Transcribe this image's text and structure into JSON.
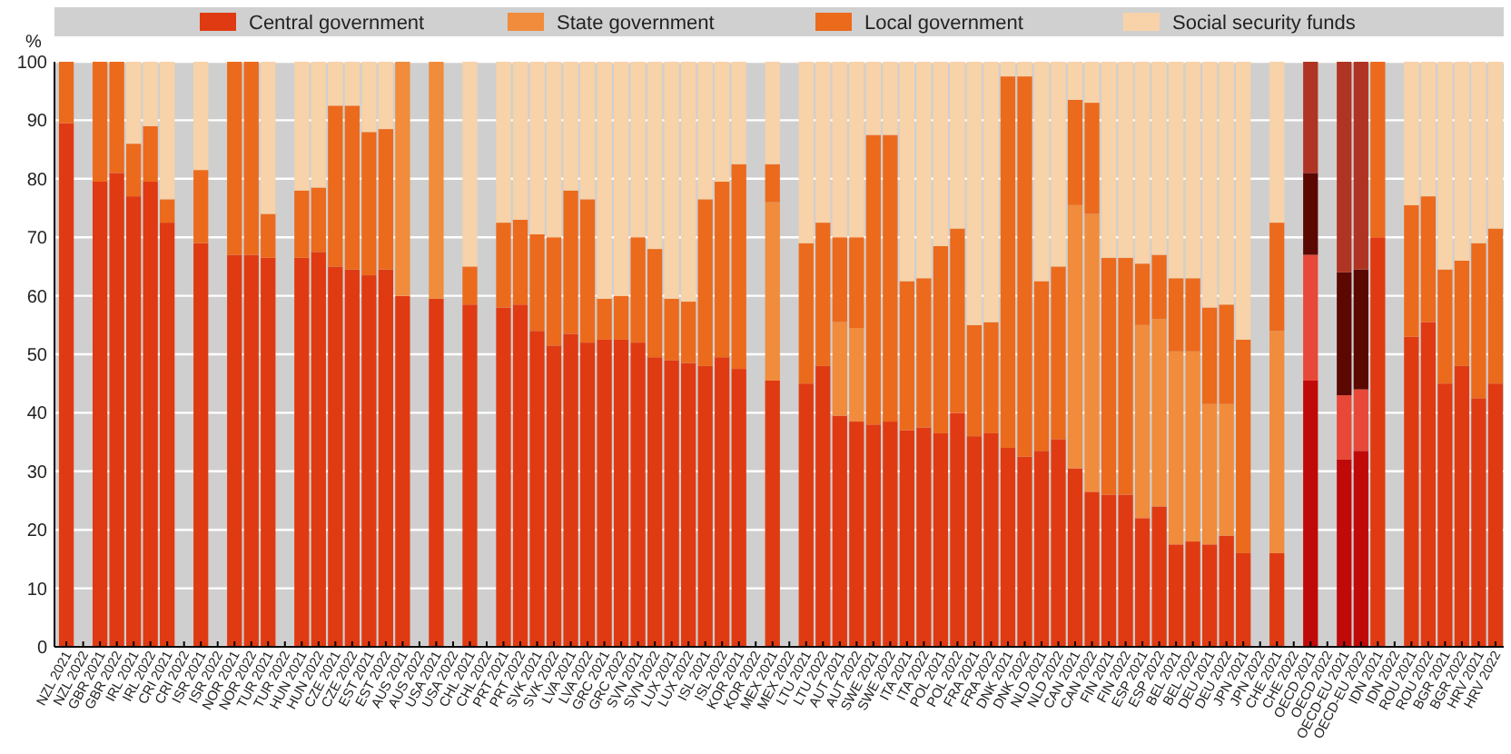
{
  "chart_data": {
    "type": "bar",
    "stacked": true,
    "ylabel": "%",
    "ylim": [
      0,
      100
    ],
    "yticks": [
      0,
      10,
      20,
      30,
      40,
      50,
      60,
      70,
      80,
      90,
      100
    ],
    "grid": "y",
    "legend": "top",
    "categories": [
      "NZL 2021",
      "NZL 2022",
      "GBR 2021",
      "GBR 2022",
      "IRL 2021",
      "IRL 2022",
      "CRI 2021",
      "CRI 2022",
      "ISR 2021",
      "ISR 2022",
      "NOR 2021",
      "NOR 2022",
      "TUR 2021",
      "TUR 2022",
      "HUN 2021",
      "HUN 2022",
      "CZE 2021",
      "CZE 2022",
      "EST 2021",
      "EST 2022",
      "AUS 2021",
      "AUS 2022",
      "USA 2021",
      "USA 2022",
      "CHL 2021",
      "CHL 2022",
      "PRT 2021",
      "PRT 2022",
      "SVK 2021",
      "SVK 2022",
      "LVA 2021",
      "LVA 2022",
      "GRC 2021",
      "GRC 2022",
      "SVN 2021",
      "SVN 2022",
      "LUX 2021",
      "LUX 2022",
      "ISL 2021",
      "ISL 2022",
      "KOR 2021",
      "KOR 2022",
      "MEX 2021",
      "MEX 2022",
      "LTU 2021",
      "LTU 2022",
      "AUT 2021",
      "AUT 2022",
      "SWE 2021",
      "SWE 2022",
      "ITA 2021",
      "ITA 2022",
      "POL 2021",
      "POL 2022",
      "FRA 2021",
      "FRA 2022",
      "DNK 2021",
      "DNK 2022",
      "NLD 2021",
      "NLD 2022",
      "CAN 2021",
      "CAN 2022",
      "FIN 2021",
      "FIN 2022",
      "ESP 2021",
      "ESP 2022",
      "BEL 2021",
      "BEL 2022",
      "DEU 2021",
      "DEU 2022",
      "JPN 2021",
      "JPN 2022",
      "CHE 2021",
      "CHE 2022",
      "OECD 2021",
      "OECD 2022",
      "OECD-EU 2021",
      "OECD-EU 2022",
      "IDN 2021",
      "IDN 2022",
      "ROU 2021",
      "ROU 2022",
      "BGR 2021",
      "BGR 2022",
      "HRV 2021",
      "HRV 2022"
    ],
    "series": [
      {
        "name": "Central government",
        "color": "#e03a12",
        "colors": [
          null,
          null,
          null,
          null,
          null,
          null,
          null,
          null,
          null,
          null,
          null,
          null,
          null,
          null,
          null,
          null,
          null,
          null,
          null,
          null,
          null,
          null,
          null,
          null,
          null,
          null,
          null,
          null,
          null,
          null,
          null,
          null,
          null,
          null,
          null,
          null,
          null,
          null,
          null,
          null,
          null,
          null,
          null,
          null,
          null,
          null,
          null,
          null,
          null,
          null,
          null,
          null,
          null,
          null,
          null,
          null,
          null,
          null,
          null,
          null,
          null,
          null,
          null,
          null,
          null,
          null,
          null,
          null,
          null,
          null,
          null,
          null,
          null,
          null,
          "#c00a0a",
          null,
          "#c00a0a",
          "#c00a0a",
          null,
          null,
          null,
          null,
          null,
          null,
          null,
          null
        ],
        "values": [
          89.5,
          null,
          79.5,
          81,
          77,
          79.5,
          72.5,
          null,
          69,
          null,
          67,
          67,
          66.5,
          null,
          66.5,
          67.5,
          65,
          64.5,
          63.5,
          64.5,
          60,
          null,
          59.5,
          null,
          58.5,
          null,
          58,
          58.5,
          54,
          51.5,
          53.5,
          52,
          52.5,
          52.5,
          52,
          49.5,
          49,
          48.5,
          48,
          49.5,
          47.5,
          null,
          45.5,
          null,
          45,
          48,
          39.5,
          38.5,
          38,
          38.5,
          37,
          37.5,
          36.5,
          40,
          36,
          36.5,
          34,
          32.5,
          33.5,
          35.5,
          30.5,
          26.5,
          26,
          26,
          22,
          24,
          17.5,
          18,
          17.5,
          19,
          16,
          null,
          16,
          null,
          45.5,
          null,
          32,
          33.5,
          70,
          null,
          53,
          55.5,
          45,
          48,
          42.5,
          45
        ]
      },
      {
        "name": "State government",
        "color": "#f08c3c",
        "colors": [
          null,
          null,
          null,
          null,
          null,
          null,
          null,
          null,
          null,
          null,
          null,
          null,
          null,
          null,
          null,
          null,
          null,
          null,
          null,
          null,
          null,
          null,
          null,
          null,
          null,
          null,
          null,
          null,
          null,
          null,
          null,
          null,
          null,
          null,
          null,
          null,
          null,
          null,
          null,
          null,
          null,
          null,
          null,
          null,
          null,
          null,
          null,
          null,
          null,
          null,
          null,
          null,
          null,
          null,
          null,
          null,
          null,
          null,
          null,
          null,
          null,
          null,
          null,
          null,
          null,
          null,
          null,
          null,
          null,
          null,
          null,
          null,
          null,
          null,
          "#e84838",
          null,
          "#e84838",
          "#e84838",
          null,
          null,
          null,
          null,
          null,
          null,
          null,
          null
        ],
        "values": [
          0,
          null,
          0,
          0,
          0,
          0,
          0,
          null,
          0,
          null,
          0,
          0,
          0,
          null,
          0,
          0,
          0,
          0,
          0,
          0,
          40,
          null,
          40.5,
          null,
          0,
          null,
          0,
          0,
          0,
          0,
          0,
          0,
          0,
          0,
          0,
          0,
          0,
          0,
          0,
          0,
          0,
          null,
          30.5,
          null,
          0,
          0,
          16,
          16,
          0,
          0,
          0,
          0,
          0,
          0,
          0,
          0,
          0,
          0,
          0,
          0,
          45,
          47.5,
          0,
          0,
          33,
          32,
          33,
          32.5,
          24,
          22.5,
          0,
          null,
          38,
          null,
          21.5,
          null,
          11,
          10.5,
          0,
          null,
          0,
          0,
          0,
          0,
          0,
          0
        ]
      },
      {
        "name": "Local government",
        "color": "#ec6a1c",
        "colors": [
          null,
          null,
          null,
          null,
          null,
          null,
          null,
          null,
          null,
          null,
          null,
          null,
          null,
          null,
          null,
          null,
          null,
          null,
          null,
          null,
          null,
          null,
          null,
          null,
          null,
          null,
          null,
          null,
          null,
          null,
          null,
          null,
          null,
          null,
          null,
          null,
          null,
          null,
          null,
          null,
          null,
          null,
          null,
          null,
          null,
          null,
          null,
          null,
          null,
          null,
          null,
          null,
          null,
          null,
          null,
          null,
          null,
          null,
          null,
          null,
          null,
          null,
          null,
          null,
          null,
          null,
          null,
          null,
          null,
          null,
          null,
          null,
          null,
          null,
          "#5a0800",
          null,
          "#5a0800",
          "#5a0800",
          null,
          null,
          null,
          null,
          null,
          null,
          null,
          null
        ],
        "values": [
          10.5,
          null,
          20.5,
          19,
          9,
          9.5,
          4,
          null,
          12.5,
          null,
          33,
          33,
          7.5,
          null,
          11.5,
          11,
          27.5,
          28,
          24.5,
          24,
          0,
          null,
          0,
          null,
          6.5,
          null,
          14.5,
          14.5,
          16.5,
          18.5,
          24.5,
          24.5,
          7,
          7.5,
          18,
          18.5,
          10.5,
          10.5,
          28.5,
          30,
          35,
          null,
          6.5,
          null,
          24,
          24.5,
          14.5,
          15.5,
          49.5,
          49,
          25.5,
          25.5,
          32,
          31.5,
          19,
          19,
          63.5,
          65,
          29,
          29.5,
          18,
          19,
          40.5,
          40.5,
          10.5,
          11,
          12.5,
          12.5,
          16.5,
          17,
          36.5,
          null,
          18.5,
          null,
          14,
          null,
          21,
          20.5,
          30,
          null,
          22.5,
          21.5,
          19.5,
          18,
          26.5,
          26.5
        ]
      },
      {
        "name": "Social security funds",
        "color": "#f8d2a8",
        "colors": [
          null,
          null,
          null,
          null,
          null,
          null,
          null,
          null,
          null,
          null,
          null,
          null,
          null,
          null,
          null,
          null,
          null,
          null,
          null,
          null,
          null,
          null,
          null,
          null,
          null,
          null,
          null,
          null,
          null,
          null,
          null,
          null,
          null,
          null,
          null,
          null,
          null,
          null,
          null,
          null,
          null,
          null,
          null,
          null,
          null,
          null,
          null,
          null,
          null,
          null,
          null,
          null,
          null,
          null,
          null,
          null,
          null,
          null,
          null,
          null,
          null,
          null,
          null,
          null,
          null,
          null,
          null,
          null,
          null,
          null,
          null,
          null,
          null,
          null,
          "#b03424",
          null,
          "#b03424",
          "#b03424",
          null,
          null,
          null,
          null,
          null,
          null,
          null,
          null
        ],
        "values": [
          0,
          null,
          0,
          0,
          14,
          11,
          23.5,
          null,
          18.5,
          null,
          0,
          0,
          26,
          null,
          22,
          21.5,
          7.5,
          7.5,
          12,
          11.5,
          0,
          null,
          0,
          null,
          35,
          null,
          27.5,
          27,
          29.5,
          30,
          22,
          23.5,
          40.5,
          40,
          30,
          32,
          40.5,
          41,
          23.5,
          20.5,
          17.5,
          null,
          17.5,
          null,
          31,
          27.5,
          30,
          30,
          12.5,
          12.5,
          37.5,
          37,
          31.5,
          28.5,
          45,
          44.5,
          2.5,
          2.5,
          37.5,
          35,
          6.5,
          7,
          33.5,
          33.5,
          34.5,
          33,
          37,
          37,
          42,
          41.5,
          47.5,
          null,
          27.5,
          null,
          19,
          null,
          36,
          35.5,
          0,
          null,
          24.5,
          23,
          35.5,
          34,
          31,
          28.5
        ]
      }
    ]
  }
}
